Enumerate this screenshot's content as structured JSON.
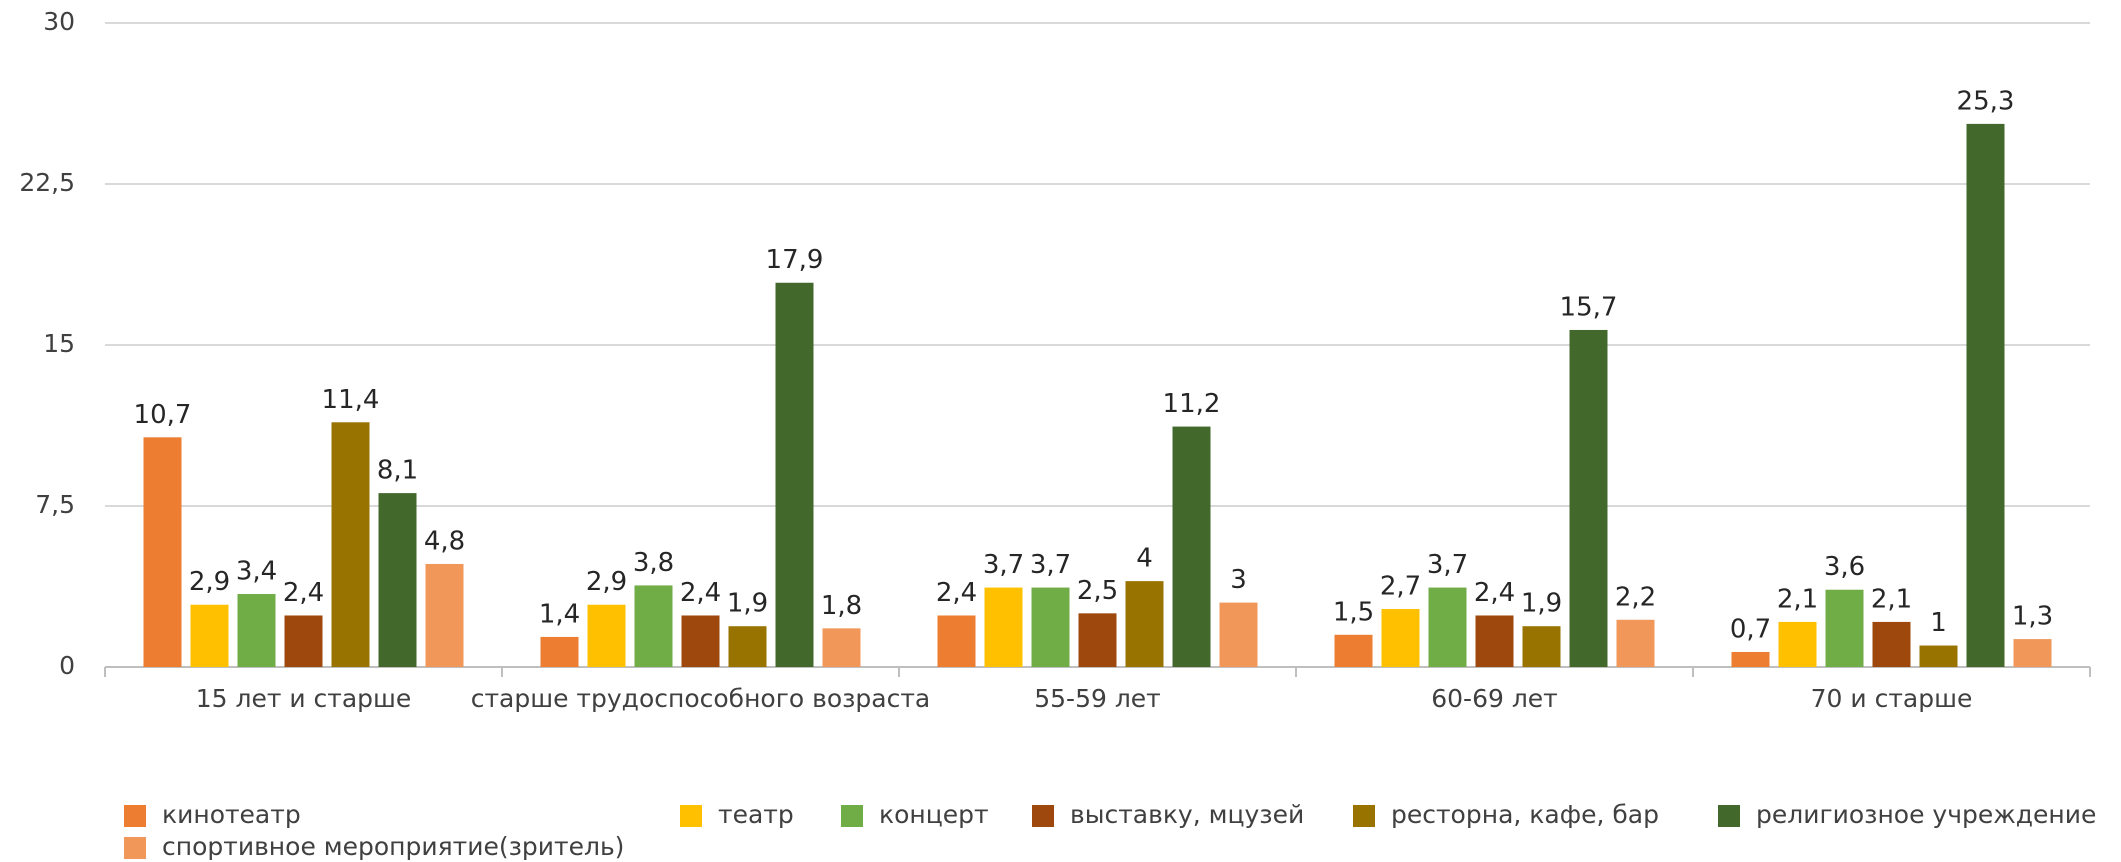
{
  "chart_data": {
    "type": "bar",
    "categories": [
      "15 лет  и старше",
      "старше трудоспособного возраста",
      "55-59 лет",
      "60-69 лет",
      "70 и старше"
    ],
    "series": [
      {
        "name": "кинотеатр",
        "color": "#ED7D31",
        "values": [
          10.7,
          1.4,
          2.4,
          1.5,
          0.7
        ],
        "value_labels": [
          "10,7",
          "1,4",
          "2,4",
          "1,5",
          "0,7"
        ]
      },
      {
        "name": "театр",
        "color": "#FFC000",
        "values": [
          2.9,
          2.9,
          3.7,
          2.7,
          2.1
        ],
        "value_labels": [
          "2,9",
          "2,9",
          "3,7",
          "2,7",
          "2,1"
        ]
      },
      {
        "name": "концерт",
        "color": "#70AD47",
        "values": [
          3.4,
          3.8,
          3.7,
          3.7,
          3.6
        ],
        "value_labels": [
          "3,4",
          "3,8",
          "3,7",
          "3,7",
          "3,6"
        ]
      },
      {
        "name": "выставку, мцузей",
        "color": "#9E480E",
        "values": [
          2.4,
          2.4,
          2.5,
          2.4,
          2.1
        ],
        "value_labels": [
          "2,4",
          "2,4",
          "2,5",
          "2,4",
          "2,1"
        ]
      },
      {
        "name": "ресторна, кафе, бар",
        "color": "#997300",
        "values": [
          11.4,
          1.9,
          4,
          1.9,
          1
        ],
        "value_labels": [
          "11,4",
          "1,9",
          "4",
          "1,9",
          "1"
        ]
      },
      {
        "name": "религиозное учреждение",
        "color": "#43682B",
        "values": [
          8.1,
          17.9,
          11.2,
          15.7,
          25.3
        ],
        "value_labels": [
          "8,1",
          "17,9",
          "11,2",
          "15,7",
          "25,3"
        ]
      },
      {
        "name": "спортивное мероприятие(зритель)",
        "color": "#F1975A",
        "values": [
          4.8,
          1.8,
          3,
          2.2,
          1.3
        ],
        "value_labels": [
          "4,8",
          "1,8",
          "3",
          "2,2",
          "1,3"
        ]
      }
    ],
    "ylim": [
      0,
      30
    ],
    "yticks": [
      0,
      {
        "value": 7.5,
        "label": "7,5"
      },
      15,
      {
        "value": 22.5,
        "label": "22,5"
      },
      30
    ],
    "grid": true
  }
}
